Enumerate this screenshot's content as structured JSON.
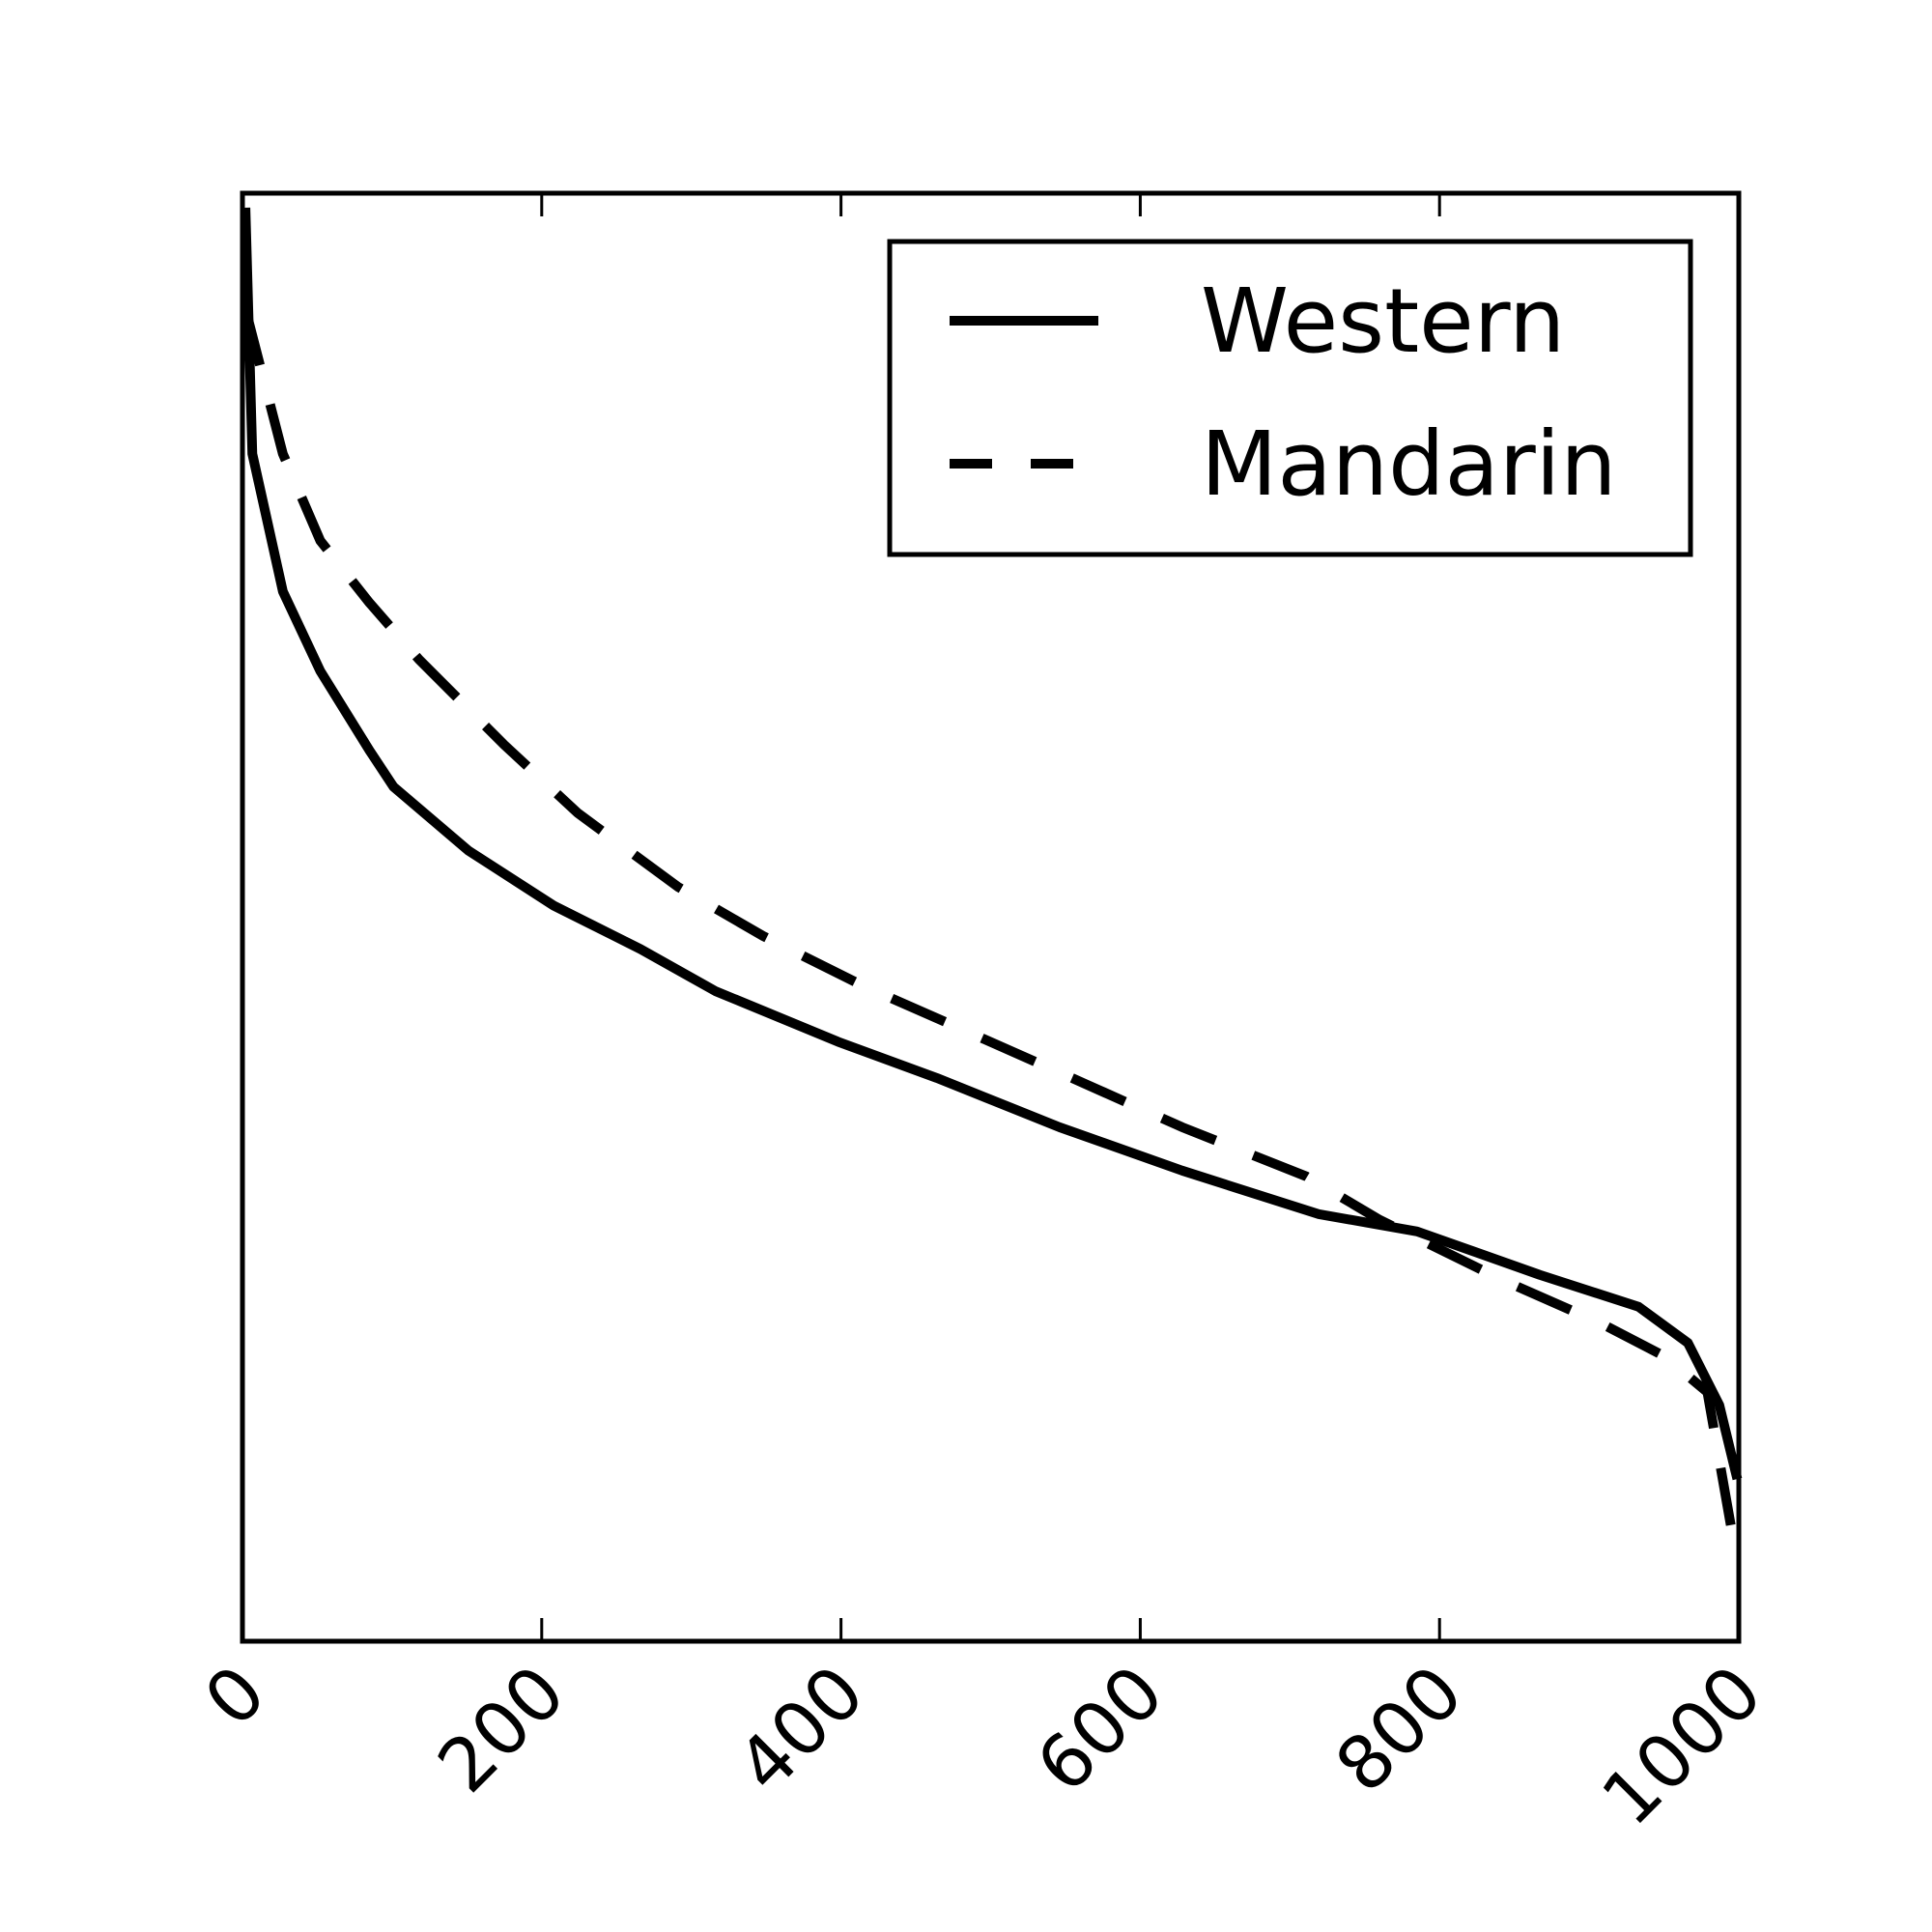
{
  "chart_data": {
    "type": "line",
    "series": [
      {
        "name": "Western",
        "color": "#000000",
        "linestyle": "solid",
        "x": [
          2,
          6.6,
          27,
          52,
          85,
          101,
          151,
          208,
          266,
          316,
          398,
          464,
          546,
          628,
          719,
          785,
          867,
          933,
          966,
          987,
          999
        ],
        "values": [
          0.99,
          0.82,
          0.725,
          0.67,
          0.615,
          0.59,
          0.546,
          0.508,
          0.478,
          0.449,
          0.414,
          0.389,
          0.355,
          0.325,
          0.295,
          0.283,
          0.253,
          0.231,
          0.206,
          0.163,
          0.112
        ]
      },
      {
        "name": "Mandarin",
        "color": "#000000",
        "linestyle": "dashed",
        "x": [
          2,
          27,
          52,
          85,
          118,
          175,
          224,
          291,
          348,
          414,
          480,
          563,
          628,
          711,
          760,
          843,
          909,
          950,
          979,
          995
        ],
        "values": [
          0.92,
          0.82,
          0.76,
          0.717,
          0.678,
          0.619,
          0.572,
          0.521,
          0.487,
          0.453,
          0.423,
          0.385,
          0.355,
          0.321,
          0.291,
          0.249,
          0.219,
          0.197,
          0.172,
          0.078
        ]
      }
    ],
    "xlim": [
      0,
      1000
    ],
    "xticks": [
      0,
      200,
      400,
      600,
      800,
      1000
    ],
    "ylim": [
      0,
      1
    ],
    "legend": "upper right"
  }
}
